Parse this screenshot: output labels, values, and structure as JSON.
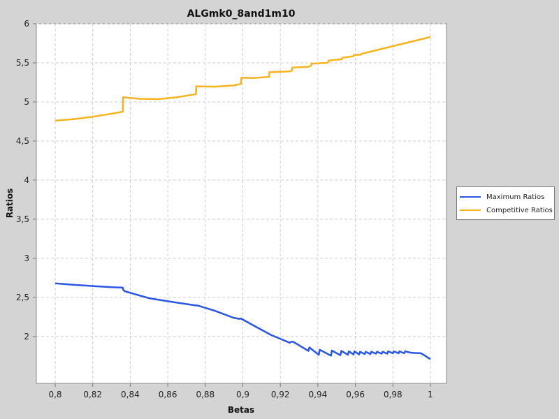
{
  "chart_data": {
    "type": "line",
    "title": "ALGmk0_8and1m10",
    "xlabel": "Betas",
    "ylabel": "Ratios",
    "xlim": [
      0.8,
      1.0
    ],
    "ylim": [
      1.4,
      6.0
    ],
    "xticks": [
      "0,8",
      "0,82",
      "0,84",
      "0,86",
      "0,88",
      "0,9",
      "0,92",
      "0,94",
      "0,96",
      "0,98",
      "1"
    ],
    "yticks": [
      "2",
      "2,5",
      "3",
      "3,5",
      "4",
      "4,5",
      "5",
      "5,5",
      "6"
    ],
    "grid": true,
    "legend_position": "right",
    "series": [
      {
        "name": "Maximum Ratios",
        "color": "#2a55e6",
        "x": [
          0.8,
          0.81,
          0.82,
          0.83,
          0.836,
          0.8362,
          0.837,
          0.85,
          0.86,
          0.874,
          0.876,
          0.885,
          0.895,
          0.898,
          0.899,
          0.905,
          0.915,
          0.925,
          0.926,
          0.927,
          0.935,
          0.9355,
          0.9405,
          0.941,
          0.947,
          0.9475,
          0.952,
          0.9525,
          0.956,
          0.9565,
          0.959,
          0.9595,
          0.962,
          0.9625,
          0.965,
          0.9655,
          0.968,
          0.9685,
          0.971,
          0.9715,
          0.974,
          0.9745,
          0.977,
          0.9775,
          0.98,
          0.9805,
          0.983,
          0.9835,
          0.986,
          0.9865,
          0.99,
          0.995,
          0.996,
          1.0
        ],
        "values": [
          2.68,
          2.66,
          2.645,
          2.63,
          2.625,
          2.6,
          2.58,
          2.49,
          2.45,
          2.4,
          2.395,
          2.33,
          2.24,
          2.225,
          2.23,
          2.15,
          2.02,
          1.92,
          1.935,
          1.93,
          1.815,
          1.86,
          1.765,
          1.83,
          1.755,
          1.82,
          1.76,
          1.815,
          1.765,
          1.81,
          1.77,
          1.81,
          1.77,
          1.805,
          1.775,
          1.805,
          1.775,
          1.805,
          1.78,
          1.805,
          1.78,
          1.805,
          1.78,
          1.81,
          1.785,
          1.81,
          1.785,
          1.81,
          1.785,
          1.81,
          1.79,
          1.785,
          1.77,
          1.71
        ]
      },
      {
        "name": "Competitive Ratios",
        "color": "#f5b41e",
        "x": [
          0.8,
          0.81,
          0.82,
          0.83,
          0.836,
          0.8362,
          0.845,
          0.855,
          0.865,
          0.875,
          0.8752,
          0.885,
          0.895,
          0.899,
          0.8992,
          0.905,
          0.914,
          0.9142,
          0.925,
          0.9262,
          0.9264,
          0.935,
          0.9364,
          0.9366,
          0.945,
          0.9456,
          0.9458,
          0.9528,
          0.953,
          0.959,
          0.9592,
          0.963,
          0.9632,
          1.0
        ],
        "values": [
          4.76,
          4.78,
          4.81,
          4.85,
          4.875,
          5.06,
          5.04,
          5.035,
          5.06,
          5.1,
          5.2,
          5.195,
          5.21,
          5.23,
          5.31,
          5.305,
          5.32,
          5.38,
          5.39,
          5.4,
          5.44,
          5.45,
          5.465,
          5.49,
          5.5,
          5.51,
          5.53,
          5.545,
          5.565,
          5.585,
          5.6,
          5.605,
          5.615,
          5.83
        ]
      }
    ]
  }
}
